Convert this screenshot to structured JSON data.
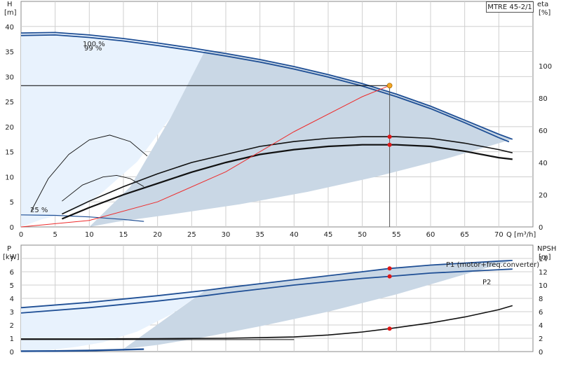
{
  "model": "MTRE 45-2/1",
  "colors": {
    "envelope_light": "#e8f2fd",
    "envelope_dark": "#c9d7e5",
    "pump_curve": "#1f4f95",
    "system_curve": "#ee2b2b",
    "marker": "#e01818",
    "duty_point": "#f5a623",
    "grid": "#cfcfcf"
  },
  "chart_data": [
    {
      "type": "line",
      "panel": "upper",
      "x_axis": {
        "label": "Q [m³/h]",
        "range": [
          0,
          75
        ],
        "ticks": [
          0,
          5,
          10,
          15,
          20,
          25,
          30,
          35,
          40,
          45,
          50,
          55,
          60,
          65,
          70
        ]
      },
      "y_left": {
        "label": "H",
        "unit": "[m]",
        "range": [
          0,
          45
        ],
        "ticks": [
          0,
          5,
          10,
          15,
          20,
          25,
          30,
          35,
          40
        ]
      },
      "y_right": {
        "label": "eta",
        "unit": "[%]",
        "range": [
          0,
          140
        ],
        "ticks": [
          0,
          20,
          40,
          60,
          80,
          100
        ]
      },
      "series": [
        {
          "name": "100 %",
          "axis": "H",
          "x": [
            0,
            5,
            10,
            15,
            20,
            25,
            30,
            35,
            40,
            45,
            50,
            55,
            60,
            65,
            70,
            72
          ],
          "y": [
            38.7,
            38.8,
            38.3,
            37.6,
            36.7,
            35.7,
            34.6,
            33.4,
            32.0,
            30.4,
            28.6,
            26.5,
            24.1,
            21.3,
            18.5,
            17.5
          ]
        },
        {
          "name": "99 %",
          "axis": "H",
          "x": [
            0,
            5,
            10,
            15,
            20,
            25,
            30,
            35,
            40,
            45,
            50,
            55,
            60,
            65,
            70,
            71.5
          ],
          "y": [
            38.2,
            38.3,
            37.8,
            37.1,
            36.2,
            35.2,
            34.1,
            32.9,
            31.5,
            29.9,
            28.1,
            26.0,
            23.6,
            20.8,
            17.8,
            17.0
          ]
        },
        {
          "name": "25 %",
          "axis": "H",
          "x": [
            0,
            5,
            10,
            15,
            18
          ],
          "y": [
            2.4,
            2.3,
            2.0,
            1.5,
            1.1
          ]
        },
        {
          "name": "eta upper",
          "axis": "eta",
          "x": [
            6,
            10,
            15,
            20,
            25,
            30,
            35,
            40,
            45,
            50,
            55,
            60,
            65,
            70,
            72
          ],
          "y": [
            8,
            16,
            25,
            33,
            40,
            45,
            50,
            53,
            55,
            56,
            56,
            55,
            52,
            48,
            46
          ]
        },
        {
          "name": "eta lower",
          "axis": "eta",
          "x": [
            6,
            10,
            15,
            20,
            25,
            30,
            35,
            40,
            45,
            50,
            55,
            60,
            65,
            70,
            72
          ],
          "y": [
            5,
            12,
            20,
            27,
            34,
            40,
            45,
            48,
            50,
            51,
            51,
            50,
            47,
            43,
            42
          ]
        },
        {
          "name": "eta small 1",
          "axis": "eta",
          "x": [
            1.5,
            4,
            7,
            10,
            13,
            16,
            18.5
          ],
          "y": [
            10,
            30,
            45,
            54,
            57,
            53,
            44
          ]
        },
        {
          "name": "eta small 2",
          "axis": "eta",
          "x": [
            6,
            9,
            12,
            14,
            16,
            18
          ],
          "y": [
            16,
            26,
            31,
            32,
            30,
            25
          ]
        },
        {
          "name": "system",
          "axis": "H",
          "x": [
            0,
            10,
            20,
            30,
            40,
            50,
            54
          ],
          "y": [
            0,
            1.3,
            5.0,
            11.0,
            19.0,
            26.0,
            28.2
          ]
        }
      ],
      "envelope_light": {
        "axis": "H",
        "x": [
          0,
          5,
          10,
          15,
          20,
          25,
          27,
          22,
          17,
          12,
          9,
          6,
          3,
          1,
          0
        ],
        "y": [
          38.7,
          38.8,
          38.3,
          37.6,
          36.7,
          35.7,
          35.3,
          22,
          13,
          7,
          4,
          2.5,
          1.5,
          0.5,
          0
        ]
      },
      "envelope_dark": {
        "axis": "H",
        "x": [
          27,
          30,
          35,
          40,
          45,
          50,
          55,
          60,
          65,
          70,
          72,
          62,
          52,
          42,
          32,
          22,
          14,
          10,
          16,
          22
        ],
        "y": [
          35.3,
          34.6,
          33.4,
          32.0,
          30.4,
          28.6,
          26.5,
          24.1,
          21.3,
          18.5,
          17.5,
          13.5,
          10.0,
          7.0,
          4.5,
          2.5,
          1.0,
          0,
          8,
          22
        ]
      },
      "duty_point": {
        "x": 54,
        "y": 28.2,
        "h_line_at": 28.2
      },
      "markers": [
        {
          "x": 54,
          "axis": "eta",
          "y": 56
        },
        {
          "x": 54,
          "axis": "eta",
          "y": 51
        }
      ],
      "annotations": [
        "100 %",
        "99 %",
        "25 %"
      ]
    },
    {
      "type": "line",
      "panel": "lower",
      "x_axis": {
        "range": [
          0,
          75
        ]
      },
      "y_left": {
        "label": "P",
        "unit": "[kW]",
        "range": [
          0,
          8
        ],
        "ticks": [
          0,
          1,
          2,
          3,
          4,
          5,
          6,
          7
        ]
      },
      "y_right": {
        "label": "NPSH",
        "unit": "[m]",
        "range": [
          0,
          16
        ],
        "ticks": [
          0,
          2,
          4,
          6,
          8,
          10,
          12,
          14
        ]
      },
      "series": [
        {
          "name": "P1 (motor+freq.converter)",
          "axis": "P",
          "x": [
            0,
            10,
            20,
            27,
            30,
            40,
            50,
            54,
            60,
            70,
            72
          ],
          "y": [
            3.3,
            3.7,
            4.2,
            4.6,
            4.8,
            5.4,
            6.0,
            6.25,
            6.5,
            6.8,
            6.85
          ]
        },
        {
          "name": "P2",
          "axis": "P",
          "x": [
            0,
            10,
            20,
            27,
            30,
            40,
            50,
            54,
            60,
            70,
            72
          ],
          "y": [
            2.9,
            3.3,
            3.8,
            4.2,
            4.4,
            5.0,
            5.5,
            5.65,
            5.9,
            6.15,
            6.2
          ]
        },
        {
          "name": "NPSH",
          "axis": "NPSH",
          "x": [
            0,
            10,
            20,
            30,
            40,
            45,
            50,
            54,
            60,
            65,
            70,
            72
          ],
          "y": [
            1.9,
            1.9,
            1.95,
            2.0,
            2.2,
            2.5,
            2.95,
            3.45,
            4.3,
            5.2,
            6.3,
            6.9
          ]
        },
        {
          "name": "P low",
          "axis": "P",
          "x": [
            0,
            5,
            10,
            15,
            18
          ],
          "y": [
            0.03,
            0.04,
            0.08,
            0.14,
            0.18
          ]
        }
      ],
      "envelope_light": {
        "x": [
          0,
          10,
          20,
          27,
          22,
          17,
          12,
          8,
          4,
          1,
          0
        ],
        "y": [
          3.3,
          3.7,
          4.2,
          4.6,
          2.8,
          1.5,
          0.7,
          0.35,
          0.1,
          0.02,
          0
        ]
      },
      "envelope_dark": {
        "x": [
          27,
          30,
          40,
          50,
          54,
          60,
          70,
          72,
          65,
          55,
          45,
          35,
          27,
          20,
          15
        ],
        "y": [
          4.6,
          4.8,
          5.4,
          6.0,
          6.25,
          6.5,
          6.8,
          6.85,
          5.8,
          4.3,
          3.0,
          1.9,
          1.1,
          0.5,
          0.2
        ]
      },
      "markers": [
        {
          "x": 54,
          "axis": "P",
          "y": 6.25
        },
        {
          "x": 54,
          "axis": "P",
          "y": 5.65
        },
        {
          "x": 54,
          "axis": "NPSH",
          "y": 3.45
        }
      ],
      "annotations": [
        "P1 (motor+freq.converter)",
        "P2"
      ]
    }
  ]
}
